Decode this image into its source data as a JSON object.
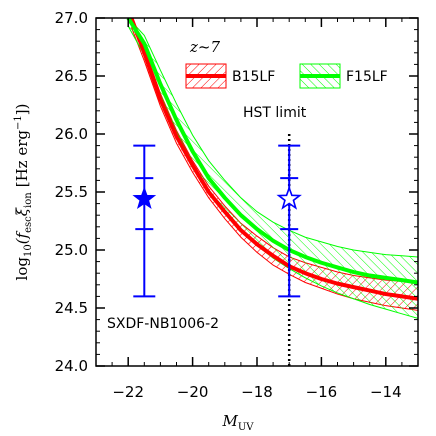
{
  "chart_data": {
    "type": "line",
    "xlabel_main": "M",
    "xlabel_sub": "UV",
    "ylabel": {
      "pre": "log",
      "base": "10",
      "open": "(f",
      "esc": "esc",
      "xi": "ξ",
      "ion": "ion",
      "units": "[Hz erg",
      "exp": "−1",
      "close": "])"
    },
    "xlim": [
      -23.0,
      -13.0
    ],
    "ylim": [
      24.0,
      27.0
    ],
    "xticks": [
      -22,
      -20,
      -18,
      -16,
      -14
    ],
    "xtick_labels": [
      "−22",
      "−20",
      "−18",
      "−16",
      "−14"
    ],
    "yticks": [
      24.0,
      24.5,
      25.0,
      25.5,
      26.0,
      26.5,
      27.0
    ],
    "ytick_labels": [
      "24.0",
      "24.5",
      "25.0",
      "25.5",
      "26.0",
      "26.5",
      "27.0"
    ],
    "legend": {
      "title": "z~7",
      "position": "top-right",
      "entries": [
        {
          "label": "B15LF",
          "color": "#ff0000"
        },
        {
          "label": "F15LF",
          "color": "#00ff00"
        }
      ]
    },
    "series": [
      {
        "name": "B15LF",
        "color": "#ff0000",
        "x": [
          -21.9,
          -21.5,
          -21.0,
          -20.5,
          -20.0,
          -19.5,
          -19.0,
          -18.5,
          -18.0,
          -17.5,
          -17.0,
          -16.5,
          -16.0,
          -15.5,
          -15.0,
          -14.5,
          -14.0,
          -13.5,
          -13.0
        ],
        "y": [
          27.0,
          26.7,
          26.3,
          25.98,
          25.73,
          25.5,
          25.33,
          25.17,
          25.05,
          24.95,
          24.86,
          24.8,
          24.75,
          24.71,
          24.68,
          24.65,
          24.62,
          24.6,
          24.58
        ],
        "y_upper": [
          27.0,
          26.74,
          26.35,
          26.03,
          25.77,
          25.55,
          25.38,
          25.23,
          25.12,
          25.02,
          24.94,
          24.89,
          24.85,
          24.81,
          24.78,
          24.76,
          24.74,
          24.73,
          24.72
        ],
        "y_lower": [
          26.92,
          26.63,
          26.24,
          25.92,
          25.67,
          25.45,
          25.27,
          25.11,
          24.98,
          24.87,
          24.79,
          24.72,
          24.67,
          24.62,
          24.58,
          24.55,
          24.52,
          24.5,
          24.48
        ]
      },
      {
        "name": "F15LF",
        "color": "#00ff00",
        "x": [
          -22.0,
          -21.5,
          -21.0,
          -20.5,
          -20.0,
          -19.5,
          -19.0,
          -18.5,
          -18.0,
          -17.5,
          -17.0,
          -16.5,
          -16.0,
          -15.5,
          -15.0,
          -14.5,
          -14.0,
          -13.5,
          -13.0
        ],
        "y": [
          27.0,
          26.78,
          26.43,
          26.12,
          25.85,
          25.62,
          25.45,
          25.3,
          25.18,
          25.08,
          25.0,
          24.94,
          24.89,
          24.85,
          24.81,
          24.78,
          24.76,
          24.74,
          24.72
        ],
        "y_upper": [
          27.0,
          26.85,
          26.55,
          26.26,
          25.99,
          25.77,
          25.6,
          25.45,
          25.33,
          25.24,
          25.17,
          25.11,
          25.07,
          25.03,
          25.0,
          24.98,
          24.96,
          24.95,
          24.94
        ],
        "y_lower": [
          26.93,
          26.68,
          26.34,
          26.02,
          25.75,
          25.52,
          25.33,
          25.17,
          25.04,
          24.93,
          24.84,
          24.76,
          24.69,
          24.63,
          24.58,
          24.53,
          24.49,
          24.45,
          24.41
        ]
      }
    ],
    "points": [
      {
        "label": "SXDF-NB1006-2",
        "marker": "filled-star",
        "x": -21.5,
        "y": 25.44,
        "err_inner": [
          25.18,
          25.62
        ],
        "err_outer": [
          24.6,
          25.9
        ],
        "color": "#0000ff"
      },
      {
        "marker": "open-star",
        "x": -17.0,
        "y": 25.44,
        "err_inner": [
          25.18,
          25.62
        ],
        "err_outer": [
          24.6,
          25.9
        ],
        "color": "#0000ff"
      }
    ],
    "vertical_line": {
      "x": -17.0,
      "style": "dotted",
      "label": "HST limit"
    },
    "grid": false
  }
}
